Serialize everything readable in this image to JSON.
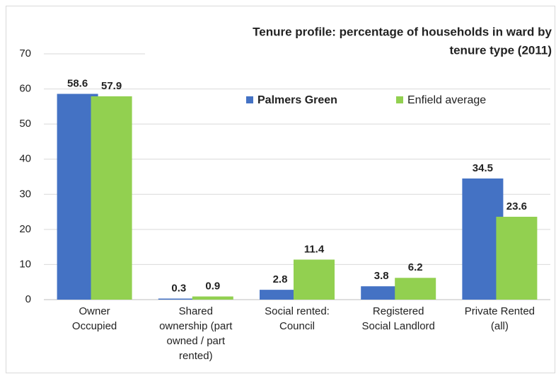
{
  "chart_data": {
    "type": "bar",
    "title": [
      "Tenure profile:  percentage of households in ward by",
      "tenure type (2011)"
    ],
    "categories": [
      [
        "Owner",
        "Occupied"
      ],
      [
        "Shared",
        "ownership (part",
        "owned / part",
        "rented)"
      ],
      [
        "Social rented:",
        "Council"
      ],
      [
        "Registered",
        "Social Landlord"
      ],
      [
        "Private Rented",
        "(all)"
      ]
    ],
    "series": [
      {
        "name": "Palmers Green",
        "color": "#4472c4",
        "label_color": "#2e75b6",
        "values": [
          58.6,
          0.3,
          2.8,
          3.8,
          34.5
        ]
      },
      {
        "name": "Enfield average",
        "color": "#92d050",
        "label_color": "#1faa4e",
        "values": [
          57.9,
          0.9,
          11.4,
          6.2,
          23.6
        ]
      }
    ],
    "ylim": [
      0,
      70
    ],
    "yticks": [
      0,
      10,
      20,
      30,
      40,
      50,
      60,
      70
    ],
    "grid": true
  }
}
